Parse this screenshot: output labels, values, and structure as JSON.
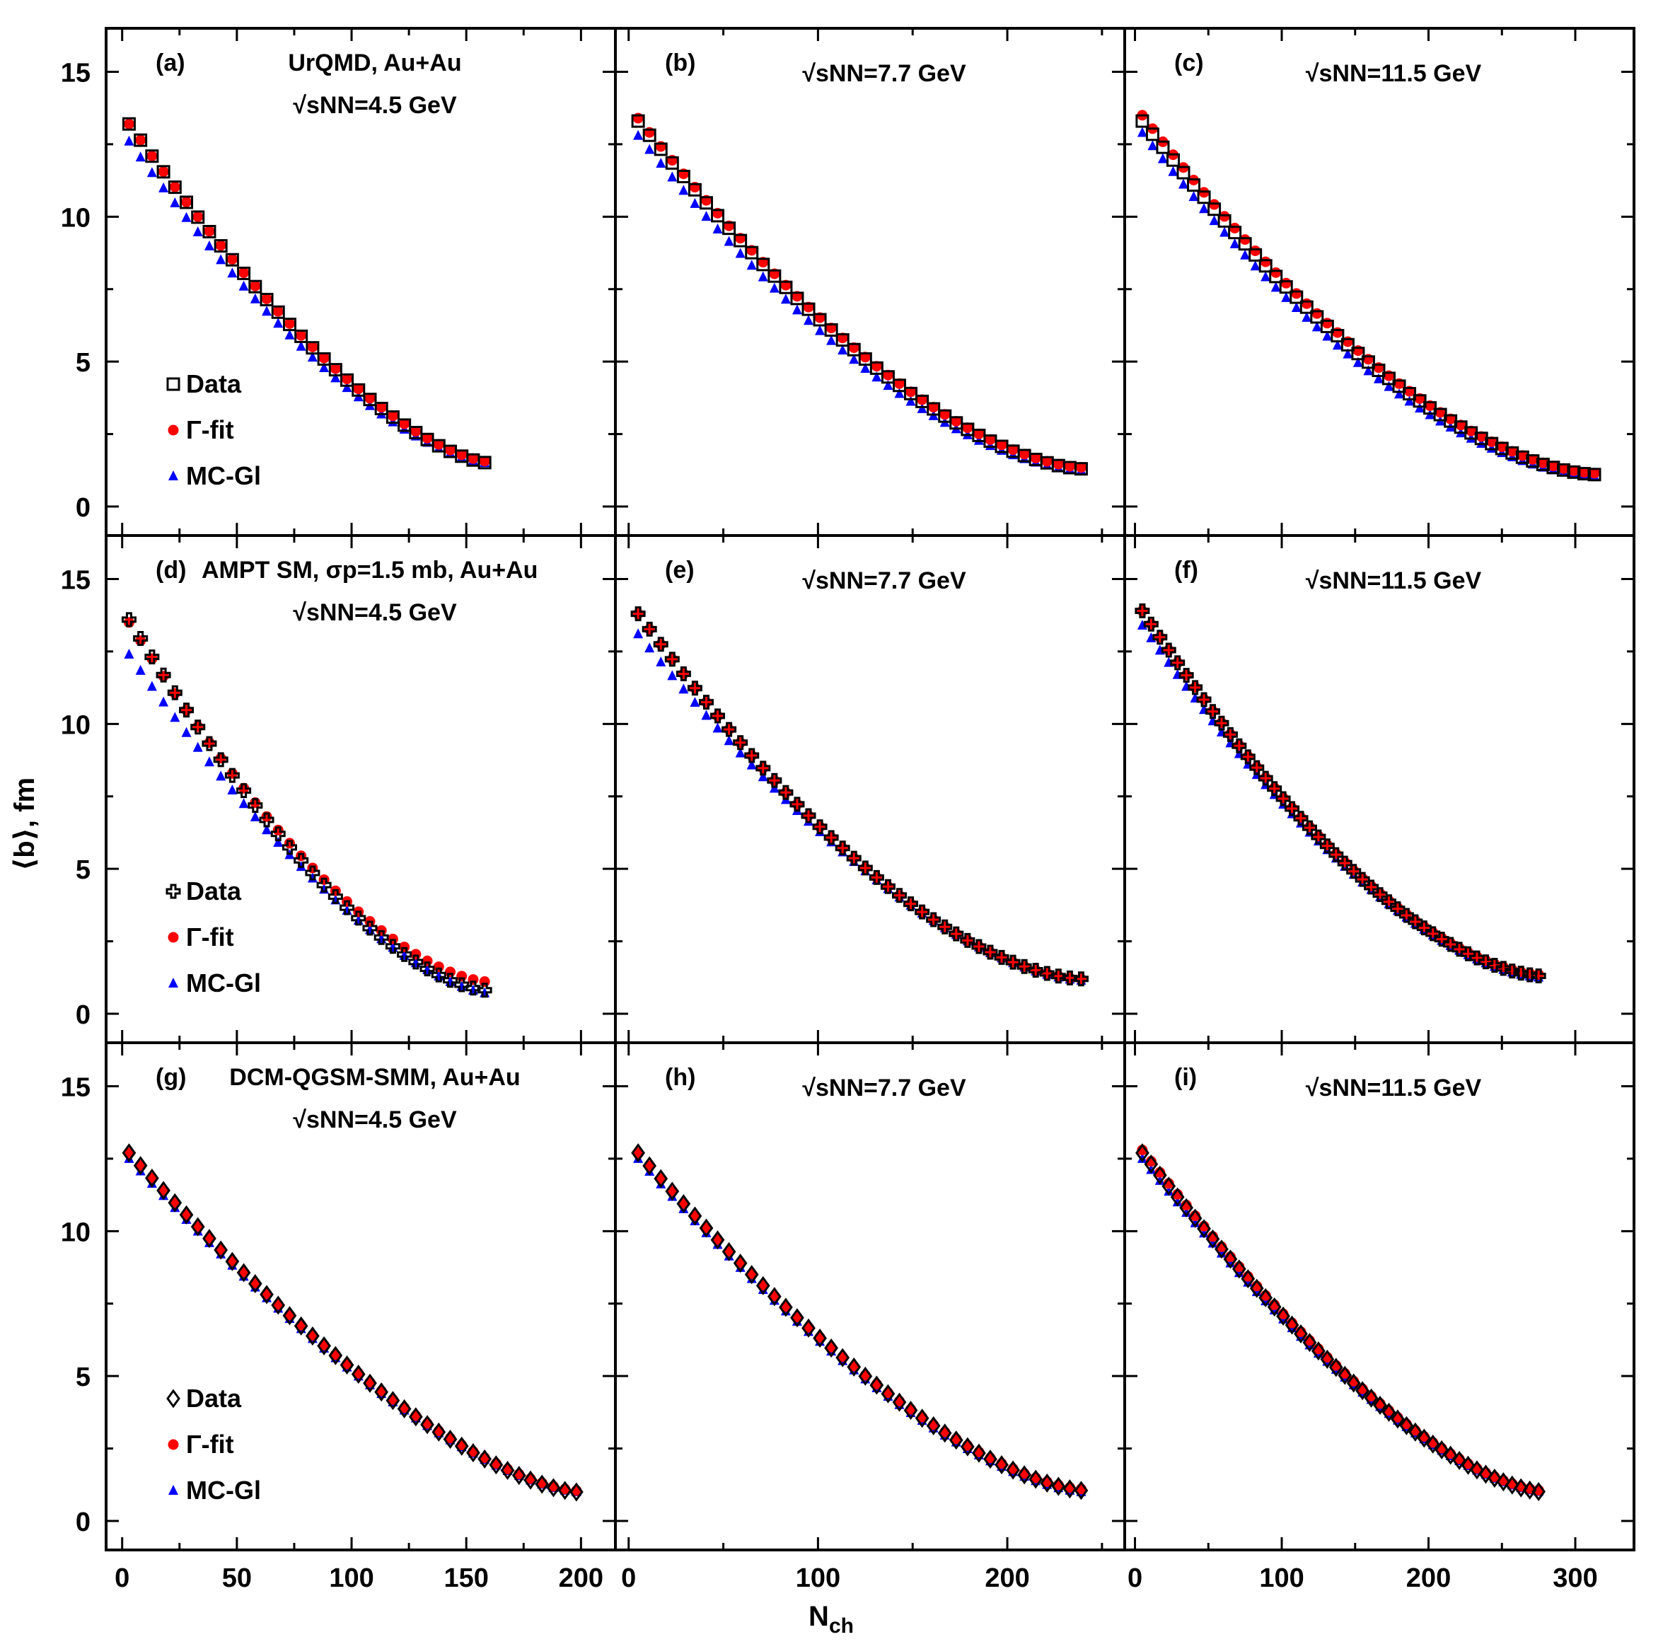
{
  "figure": {
    "ylabel": "⟨b⟩, fm",
    "xlabel_main": "N",
    "xlabel_sub": "ch",
    "legend_data": "Data",
    "legend_gamma": "Γ-fit",
    "legend_mc": "MC-Gl"
  },
  "colors": {
    "data": "#000000",
    "gamma": "#ff0000",
    "mc": "#0000ff"
  },
  "chart_data": [
    {
      "type": "scatter",
      "label": "(a)",
      "title": [
        "UrQMD, Au+Au",
        "√sNN=4.5 GeV"
      ],
      "xlim": [
        -7,
        215
      ],
      "ylim": [
        -1,
        16.5
      ],
      "xticks": [
        0,
        50,
        100,
        150,
        200
      ],
      "yticks": [
        0,
        5,
        10,
        15
      ],
      "data_marker": "square",
      "series_params": {
        "xmin": 3,
        "xmax": 160,
        "step": 5,
        "data": [
          13.2,
          1.5,
          0.66
        ],
        "gamma": [
          13.2,
          1.55,
          0.66
        ],
        "mc": [
          12.6,
          1.5,
          0.64
        ]
      },
      "legend": true
    },
    {
      "type": "scatter",
      "label": "(b)",
      "title": [
        "",
        "√sNN=7.7 GeV"
      ],
      "xlim": [
        -7,
        262
      ],
      "ylim": [
        -1,
        16.5
      ],
      "xticks": [
        0,
        100,
        200
      ],
      "yticks": [
        0,
        5,
        10,
        15
      ],
      "data_marker": "square",
      "series_params": {
        "xmin": 5,
        "xmax": 240,
        "step": 6,
        "data": [
          13.3,
          1.3,
          0.62
        ],
        "gamma": [
          13.4,
          1.35,
          0.62
        ],
        "mc": [
          12.8,
          1.25,
          0.6
        ]
      },
      "legend": false
    },
    {
      "type": "scatter",
      "label": "(c)",
      "title": [
        "",
        "√sNN=11.5 GeV"
      ],
      "xlim": [
        -7,
        340
      ],
      "ylim": [
        -1,
        16.5
      ],
      "xticks": [
        0,
        100,
        200,
        300
      ],
      "yticks": [
        0,
        5,
        10,
        15
      ],
      "data_marker": "square",
      "series_params": {
        "xmin": 5,
        "xmax": 315,
        "step": 7,
        "data": [
          13.3,
          1.1,
          0.6
        ],
        "gamma": [
          13.5,
          1.15,
          0.6
        ],
        "mc": [
          12.9,
          1.05,
          0.58
        ]
      },
      "legend": false
    },
    {
      "type": "scatter",
      "label": "(d)",
      "title": [
        "AMPT SM, σp=1.5 mb, Au+Au",
        "√sNN=4.5 GeV"
      ],
      "xlim": [
        -7,
        215
      ],
      "ylim": [
        -1,
        16.5
      ],
      "xticks": [
        0,
        50,
        100,
        150,
        200
      ],
      "yticks": [
        0,
        5,
        10,
        15
      ],
      "data_marker": "cross",
      "series_params": {
        "xmin": 3,
        "xmax": 160,
        "step": 5,
        "data": [
          13.6,
          0.8,
          0.62
        ],
        "gamma": [
          13.5,
          1.1,
          0.62
        ],
        "mc": [
          12.4,
          0.7,
          0.66
        ]
      },
      "legend": true
    },
    {
      "type": "scatter",
      "label": "(e)",
      "title": [
        "",
        "√sNN=7.7 GeV"
      ],
      "xlim": [
        -7,
        262
      ],
      "ylim": [
        -1,
        16.5
      ],
      "xticks": [
        0,
        100,
        200
      ],
      "yticks": [
        0,
        5,
        10,
        15
      ],
      "data_marker": "cross",
      "series_params": {
        "xmin": 5,
        "xmax": 240,
        "step": 6,
        "data": [
          13.8,
          1.2,
          0.6
        ],
        "gamma": [
          13.8,
          1.2,
          0.6
        ],
        "mc": [
          13.1,
          1.15,
          0.62
        ]
      },
      "legend": false
    },
    {
      "type": "scatter",
      "label": "(f)",
      "title": [
        "",
        "√sNN=11.5 GeV"
      ],
      "xlim": [
        -7,
        340
      ],
      "ylim": [
        -1,
        16.5
      ],
      "xticks": [
        0,
        100,
        200,
        300
      ],
      "yticks": [
        0,
        5,
        10,
        15
      ],
      "data_marker": "cross",
      "series_params": {
        "xmin": 5,
        "xmax": 278,
        "step": 6,
        "data": [
          13.9,
          1.3,
          0.6
        ],
        "gamma": [
          13.9,
          1.35,
          0.6
        ],
        "mc": [
          13.4,
          1.25,
          0.61
        ]
      },
      "legend": false
    },
    {
      "type": "scatter",
      "label": "(g)",
      "title": [
        "DCM-QGSM-SMM, Au+Au",
        "√sNN=4.5 GeV"
      ],
      "xlim": [
        -7,
        215
      ],
      "ylim": [
        -1,
        16.5
      ],
      "xticks": [
        0,
        50,
        100,
        150,
        200
      ],
      "yticks": [
        0,
        5,
        10,
        15
      ],
      "data_marker": "diamond",
      "series_params": {
        "xmin": 3,
        "xmax": 198,
        "step": 5,
        "data": [
          12.7,
          1.0,
          0.68
        ],
        "gamma": [
          12.7,
          1.05,
          0.68
        ],
        "mc": [
          12.5,
          1.0,
          0.68
        ]
      },
      "legend": true
    },
    {
      "type": "scatter",
      "label": "(h)",
      "title": [
        "",
        "√sNN=7.7 GeV"
      ],
      "xlim": [
        -7,
        262
      ],
      "ylim": [
        -1,
        16.5
      ],
      "xticks": [
        0,
        100,
        200
      ],
      "yticks": [
        0,
        5,
        10,
        15
      ],
      "data_marker": "diamond",
      "series_params": {
        "xmin": 5,
        "xmax": 240,
        "step": 6,
        "data": [
          12.7,
          1.05,
          0.66
        ],
        "gamma": [
          12.7,
          1.1,
          0.66
        ],
        "mc": [
          12.5,
          1.0,
          0.66
        ]
      },
      "legend": false
    },
    {
      "type": "scatter",
      "label": "(i)",
      "title": [
        "",
        "√sNN=11.5 GeV"
      ],
      "xlim": [
        -7,
        340
      ],
      "ylim": [
        -1,
        16.5
      ],
      "xticks": [
        0,
        100,
        200,
        300
      ],
      "yticks": [
        0,
        5,
        10,
        15
      ],
      "data_marker": "diamond",
      "series_params": {
        "xmin": 5,
        "xmax": 278,
        "step": 6,
        "data": [
          12.7,
          1.0,
          0.66
        ],
        "gamma": [
          12.8,
          1.05,
          0.66
        ],
        "mc": [
          12.5,
          1.0,
          0.66
        ]
      },
      "legend": false
    }
  ]
}
